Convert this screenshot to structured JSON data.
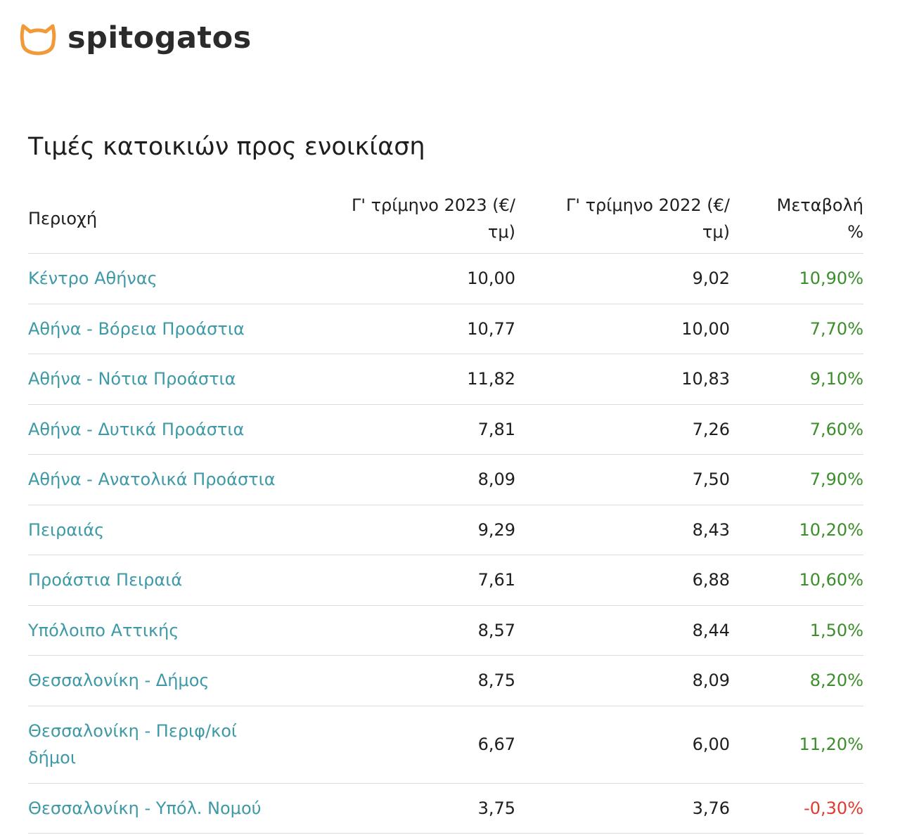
{
  "brand": {
    "name": "spitogatos",
    "logo_icon": "cat-head-icon",
    "logo_color": "#f29a3a"
  },
  "page": {
    "title": "Τιμές κατοικιών προς ενοικίαση"
  },
  "table": {
    "headers": {
      "region": "Περιοχή",
      "q3_2023": "Γ' τρίμηνο 2023 (€/τμ)",
      "q3_2022": "Γ' τρίμηνο 2022 (€/τμ)",
      "change": "Μεταβολή %"
    },
    "colors": {
      "link": "#3e99a6",
      "positive": "#3b8f2a",
      "negative": "#e03b2f"
    },
    "rows": [
      {
        "region": "Κέντρο Αθήνας",
        "q3_2023": "10,00",
        "q3_2022": "9,02",
        "change": "10,90%",
        "trend": "positive"
      },
      {
        "region": "Αθήνα - Βόρεια Προάστια",
        "q3_2023": "10,77",
        "q3_2022": "10,00",
        "change": "7,70%",
        "trend": "positive"
      },
      {
        "region": "Αθήνα - Νότια Προάστια",
        "q3_2023": "11,82",
        "q3_2022": "10,83",
        "change": "9,10%",
        "trend": "positive"
      },
      {
        "region": "Αθήνα - Δυτικά Προάστια",
        "q3_2023": "7,81",
        "q3_2022": "7,26",
        "change": "7,60%",
        "trend": "positive"
      },
      {
        "region": "Αθήνα - Ανατολικά Προάστια",
        "q3_2023": "8,09",
        "q3_2022": "7,50",
        "change": "7,90%",
        "trend": "positive"
      },
      {
        "region": "Πειραιάς",
        "q3_2023": "9,29",
        "q3_2022": "8,43",
        "change": "10,20%",
        "trend": "positive"
      },
      {
        "region": "Προάστια Πειραιά",
        "q3_2023": "7,61",
        "q3_2022": "6,88",
        "change": "10,60%",
        "trend": "positive"
      },
      {
        "region": "Υπόλοιπο Αττικής",
        "q3_2023": "8,57",
        "q3_2022": "8,44",
        "change": "1,50%",
        "trend": "positive"
      },
      {
        "region": "Θεσσαλονίκη - Δήμος",
        "q3_2023": "8,75",
        "q3_2022": "8,09",
        "change": "8,20%",
        "trend": "positive"
      },
      {
        "region": "Θεσσαλονίκη - Περιφ/κοί δήμοι",
        "q3_2023": "6,67",
        "q3_2022": "6,00",
        "change": "11,20%",
        "trend": "positive"
      },
      {
        "region": "Θεσσαλονίκη - Υπόλ. Νομού",
        "q3_2023": "3,75",
        "q3_2022": "3,76",
        "change": "-0,30%",
        "trend": "negative"
      }
    ]
  }
}
